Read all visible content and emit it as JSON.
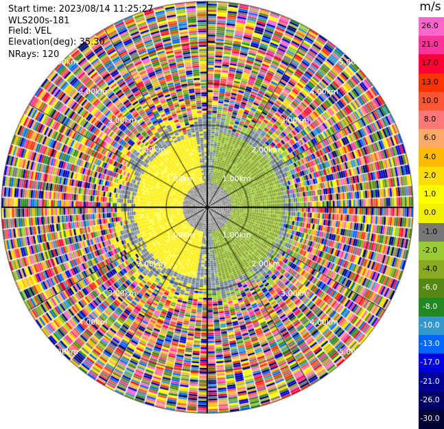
{
  "header": {
    "start_time": "Start time: 2023/08/14 11:25:27",
    "instrument": "WLS200s-181",
    "field": "Field: VEL",
    "elevation": "Elevation(deg): 35.30",
    "nrays": "NRays: 120"
  },
  "colorbar": {
    "unit": "m/s",
    "labels": [
      "26.0",
      "21.0",
      "17.0",
      "13.0",
      "10.0",
      "8.0",
      "6.0",
      "4.0",
      "2.0",
      "1.0",
      "0.0",
      "-1.0",
      "-2.0",
      "-4.0",
      "-6.0",
      "-8.0",
      "-10.0",
      "-13.0",
      "-17.0",
      "-21.0",
      "-26.0",
      "-30.0"
    ],
    "colors": [
      "#ff66cc",
      "#ff3399",
      "#ff0033",
      "#ff3300",
      "#ff5533",
      "#ff7777",
      "#ffaa66",
      "#ffbb00",
      "#ffdd00",
      "#ffff00",
      "#f0f000",
      "#777777",
      "#99cc33",
      "#88aa22",
      "#558811",
      "#228822",
      "#3399cc",
      "#0066ff",
      "#0000dd",
      "#000099",
      "#000066",
      "#000033"
    ]
  },
  "range_rings": {
    "labels": [
      "1.00km",
      "2.00km",
      "3.00km",
      "4.00km",
      "5.00km"
    ]
  }
}
